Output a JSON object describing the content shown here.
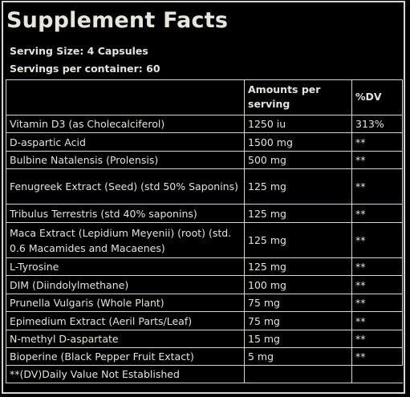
{
  "title": "Supplement Facts",
  "serving_size": "Serving Size: 4 Capsules",
  "servings_per_container": "Servings per container: 60",
  "table": {
    "headers": {
      "name": "",
      "amount": "Amounts per serving",
      "dv": "%DV"
    },
    "rows": [
      {
        "name": "Vitamin D3 (as Cholecalciferol)",
        "amount": "1250 iu",
        "dv": "313%"
      },
      {
        "name": "D-aspartic Acid",
        "amount": "1500 mg",
        "dv": "**"
      },
      {
        "name": "Bulbine Natalensis (Prolensis)",
        "amount": "500 mg",
        "dv": "**"
      },
      {
        "name": "Fenugreek Extract (Seed) (std 50% Saponins)",
        "amount": "125 mg",
        "dv": "**"
      },
      {
        "name": "Tribulus Terrestris (std 40% saponins)",
        "amount": "125 mg",
        "dv": "**"
      },
      {
        "name": "Maca Extract (Lepidium Meyenii) (root) (std. 0.6 Macamides and Macaenes)",
        "amount": "125 mg",
        "dv": "**"
      },
      {
        "name": "L-Tyrosine",
        "amount": "125 mg",
        "dv": "**"
      },
      {
        "name": "DIM (Diindolylmethane)",
        "amount": "100 mg",
        "dv": "**"
      },
      {
        "name": "Prunella Vulgaris (Whole Plant)",
        "amount": "75 mg",
        "dv": "**"
      },
      {
        "name": "Epimedium Extract (Aeril Parts/Leaf)",
        "amount": "75 mg",
        "dv": "**"
      },
      {
        "name": "N-methyl D-aspartate",
        "amount": "15 mg",
        "dv": "**"
      },
      {
        "name": "Bioperine (Black Pepper Fruit Extact)",
        "amount": "5 mg",
        "dv": "**"
      }
    ],
    "footnote": "**(DV)Daily Value Not Established"
  }
}
